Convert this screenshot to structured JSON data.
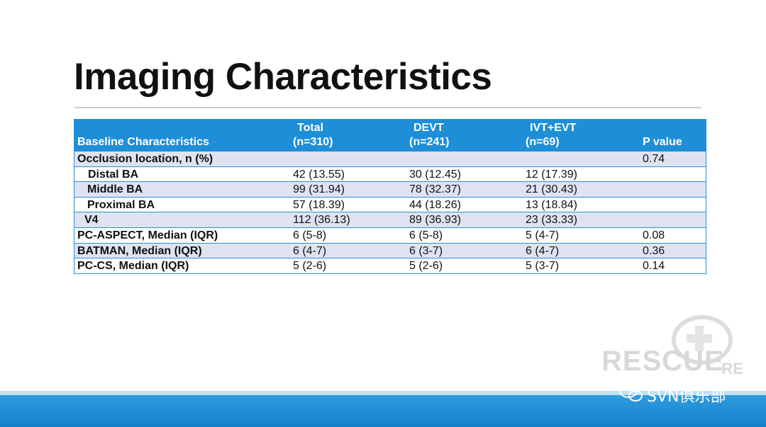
{
  "header": {
    "title": "Imaging Characteristics"
  },
  "table": {
    "columns": [
      [
        "Baseline Characteristics"
      ],
      [
        "Total",
        "(n=310)"
      ],
      [
        "DEVT",
        "(n=241)"
      ],
      [
        "IVT+EVT",
        "(n=69)"
      ],
      [
        "P value"
      ]
    ],
    "rows": [
      [
        "Occlusion location, n (%)",
        null,
        null,
        null,
        "0.74"
      ],
      [
        "Distal BA",
        "42 (13.55)",
        "30 (12.45)",
        "12 (17.39)",
        null
      ],
      [
        "Middle BA",
        "99 (31.94)",
        "78 (32.37)",
        "21 (30.43)",
        null
      ],
      [
        "Proximal BA",
        "57 (18.39)",
        "44 (18.26)",
        "13 (18.84)",
        null
      ],
      [
        "V4",
        "112 (36.13)",
        "89 (36.93)",
        "23 (33.33)",
        null
      ],
      [
        "PC-ASPECT, Median (IQR)",
        "6 (5-8)",
        "6 (5-8)",
        "5 (4-7)",
        "0.08"
      ],
      [
        "BATMAN, Median (IQR)",
        "6 (4-7)",
        "6 (3-7)",
        "6 (4-7)",
        "0.36"
      ],
      [
        "PC-CS, Median (IQR)",
        "5 (2-6)",
        "5 (2-6)",
        "5 (3-7)",
        "0.14"
      ]
    ]
  },
  "watermark": {
    "logo": "RESCUE",
    "logo_suffix": "-RE",
    "account": "SVN俱乐部"
  }
}
